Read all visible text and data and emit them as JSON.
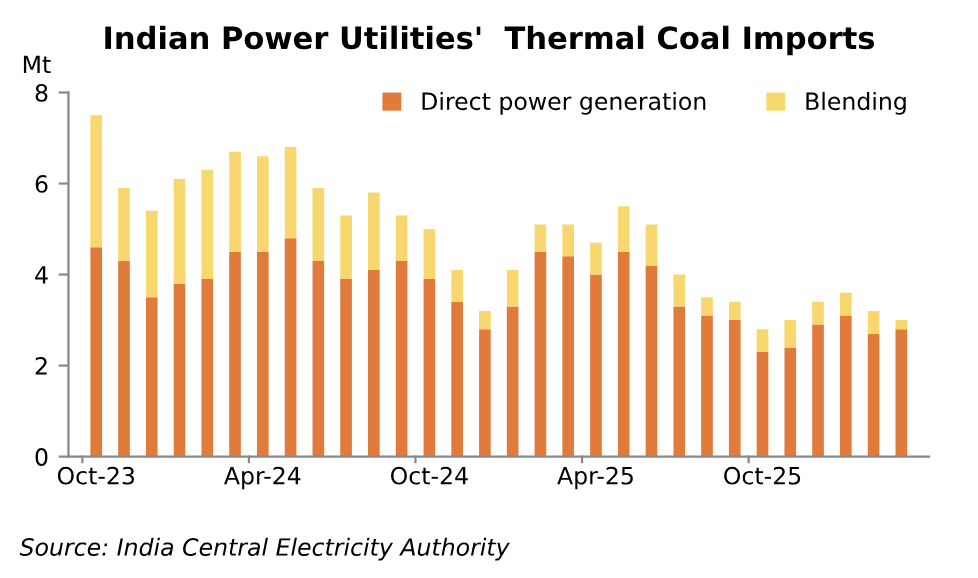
{
  "chart_data": {
    "type": "bar",
    "title": "Indian Power Utilities'  Thermal Coal Imports",
    "ylabel": "Mt",
    "categories": [
      "Oct-23",
      null,
      null,
      null,
      null,
      null,
      "Apr-24",
      null,
      null,
      null,
      null,
      null,
      "Oct-24",
      null,
      null,
      null,
      null,
      null,
      "Apr-25",
      null,
      null,
      null,
      null,
      null,
      "Oct-25",
      null,
      null,
      null,
      null,
      null
    ],
    "stacked": true,
    "series": [
      {
        "name": "Direct power generation",
        "color": "#e07b3c",
        "values": [
          4.6,
          4.3,
          3.5,
          3.8,
          3.9,
          4.5,
          4.5,
          4.8,
          4.3,
          3.9,
          4.1,
          4.3,
          3.9,
          3.4,
          2.8,
          3.3,
          4.5,
          4.4,
          4.0,
          4.5,
          4.2,
          3.3,
          3.1,
          3.0,
          2.3,
          2.4,
          2.9,
          3.1,
          2.7,
          2.8
        ]
      },
      {
        "name": "Blending",
        "color": "#f8d86e",
        "values": [
          2.9,
          1.6,
          1.9,
          2.3,
          2.4,
          2.2,
          2.1,
          2.0,
          1.6,
          1.4,
          1.7,
          1.0,
          1.1,
          0.7,
          0.4,
          0.8,
          0.6,
          0.7,
          0.7,
          1.0,
          0.9,
          0.7,
          0.4,
          0.4,
          0.5,
          0.6,
          0.5,
          0.5,
          0.5,
          0.2
        ]
      }
    ],
    "ylim": [
      0,
      8
    ],
    "yticks": [
      0,
      2,
      4,
      6,
      8
    ],
    "grid": false,
    "legend": "top right",
    "annotations": [
      "Source: India Central Electricity Authority"
    ]
  }
}
